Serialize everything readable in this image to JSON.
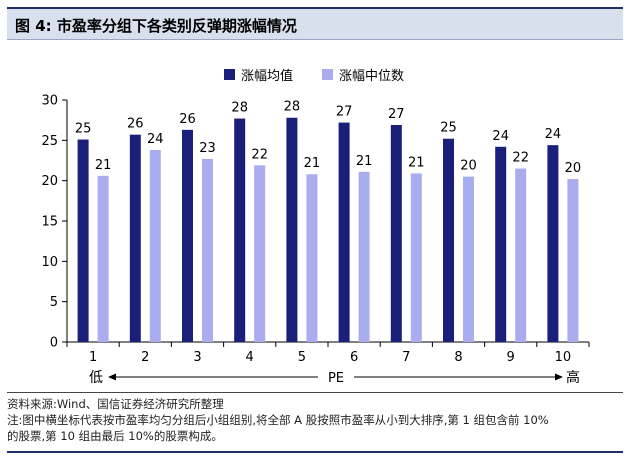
{
  "figure_title": "图 4:  市盈率分组下各类别反弹期涨幅情况",
  "colors": {
    "mean": "#1a1f7a",
    "median": "#a9adf0",
    "title_bg": "#d8e0ee",
    "rule": "#1f2f6b"
  },
  "chart_data": {
    "type": "bar",
    "categories": [
      "1",
      "2",
      "3",
      "4",
      "5",
      "6",
      "7",
      "8",
      "9",
      "10"
    ],
    "series": [
      {
        "name": "涨幅均值",
        "values": [
          25.1,
          25.7,
          26.3,
          27.7,
          27.8,
          27.2,
          26.9,
          25.2,
          24.2,
          24.4
        ],
        "labels": [
          "25",
          "26",
          "26",
          "28",
          "28",
          "27",
          "27",
          "25",
          "24",
          "24"
        ]
      },
      {
        "name": "涨幅中位数",
        "values": [
          20.6,
          23.8,
          22.7,
          21.9,
          20.8,
          21.1,
          20.9,
          20.5,
          21.5,
          20.2
        ],
        "labels": [
          "21",
          "24",
          "23",
          "22",
          "21",
          "21",
          "21",
          "20",
          "22",
          "20"
        ]
      }
    ],
    "ylim": [
      0,
      30
    ],
    "yticks": [
      "0",
      "5",
      "10",
      "15",
      "20",
      "25",
      "30"
    ],
    "grid": false,
    "legend_position": "top-center",
    "axis_note": {
      "low": "低",
      "middle": "PE",
      "high": "高"
    }
  },
  "notes": {
    "source": "资料来源:Wind、国信证券经济研究所整理",
    "note_line1": "注:图中横坐标代表按市盈率均匀分组后小组组别,将全部 A 股按照市盈率从小到大排序,第 1 组包含前 10%",
    "note_line2": "的股票,第 10 组由最后 10%的股票构成。"
  }
}
